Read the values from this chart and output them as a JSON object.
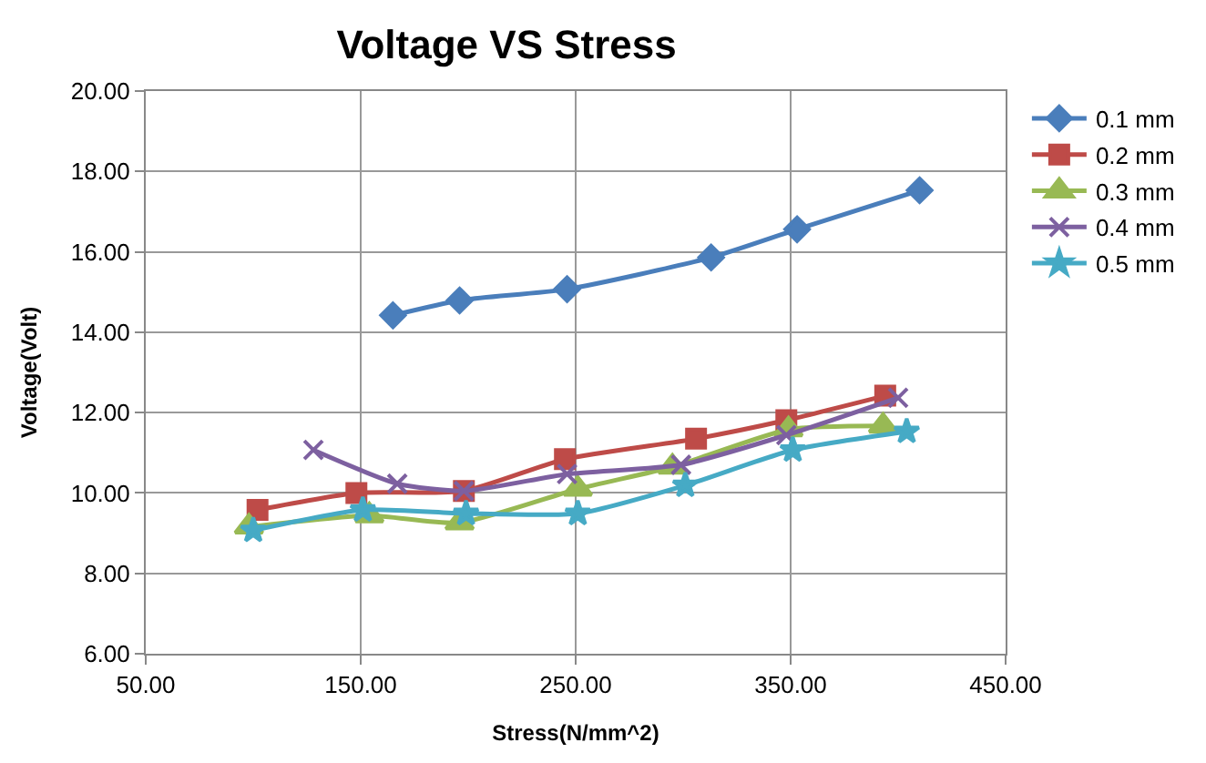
{
  "chart_data": {
    "type": "line",
    "title": "Voltage VS Stress",
    "xlabel": "Stress(N/mm^2)",
    "ylabel": "Voltage(Volt)",
    "xlim": [
      50,
      450
    ],
    "xticks": [
      {
        "value": 50,
        "label": "50.00"
      },
      {
        "value": 150,
        "label": "150.00"
      },
      {
        "value": 250,
        "label": "250.00"
      },
      {
        "value": 350,
        "label": "350.00"
      },
      {
        "value": 450,
        "label": "450.00"
      }
    ],
    "ylim": [
      6,
      20
    ],
    "yticks": [
      {
        "value": 6,
        "label": "6.00"
      },
      {
        "value": 8,
        "label": "8.00"
      },
      {
        "value": 10,
        "label": "10.00"
      },
      {
        "value": 12,
        "label": "12.00"
      },
      {
        "value": 14,
        "label": "14.00"
      },
      {
        "value": 16,
        "label": "16.00"
      },
      {
        "value": 18,
        "label": "18.00"
      },
      {
        "value": 20,
        "label": "20.00"
      }
    ],
    "grid": true,
    "legend": "top right",
    "series": [
      {
        "name": "0.1 mm",
        "color": "#4a7ebb",
        "marker": "diamond",
        "x": [
          165,
          196,
          246,
          313,
          353,
          410
        ],
        "values": [
          14.42,
          14.79,
          15.07,
          15.86,
          16.56,
          17.53
        ]
      },
      {
        "name": "0.2 mm",
        "color": "#be4b48",
        "marker": "square",
        "x": [
          102,
          148,
          198,
          245,
          306,
          348,
          394
        ],
        "values": [
          9.58,
          10.0,
          10.05,
          10.84,
          11.35,
          11.81,
          12.42
        ]
      },
      {
        "name": "0.3 mm",
        "color": "#98b954",
        "marker": "triangle",
        "x": [
          98,
          154,
          196,
          251,
          295,
          349,
          393
        ],
        "values": [
          9.16,
          9.44,
          9.26,
          10.1,
          10.65,
          11.58,
          11.67
        ]
      },
      {
        "name": "0.4 mm",
        "color": "#7d60a0",
        "marker": "cross",
        "x": [
          128,
          167,
          198,
          246,
          299,
          348,
          400
        ],
        "values": [
          11.07,
          10.23,
          10.05,
          10.47,
          10.7,
          11.44,
          12.37
        ]
      },
      {
        "name": "0.5 mm",
        "color": "#46aac5",
        "marker": "star",
        "x": [
          100,
          151,
          199,
          251,
          301,
          351,
          404
        ],
        "values": [
          9.07,
          9.58,
          9.49,
          9.49,
          10.19,
          11.07,
          11.53
        ]
      }
    ]
  }
}
